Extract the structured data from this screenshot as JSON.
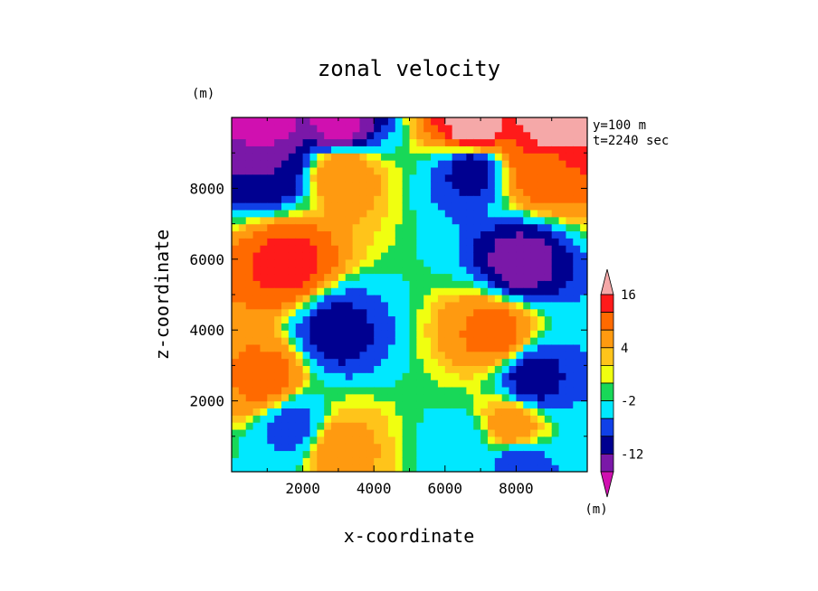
{
  "chart_data": {
    "type": "heatmap",
    "title": "zonal velocity",
    "xlabel": "x-coordinate",
    "ylabel": "z-coordinate",
    "x_unit": "(m)",
    "y_unit": "(m)",
    "xlim": [
      0,
      10000
    ],
    "ylim": [
      0,
      10000
    ],
    "x_ticks": [
      2000,
      4000,
      6000,
      8000
    ],
    "y_ticks": [
      2000,
      4000,
      6000,
      8000
    ],
    "annotations": [
      "y=100 m",
      "t=2240 sec"
    ],
    "colorbar": {
      "unit": "(m)",
      "labels": [
        "16",
        "4",
        "-2",
        "-12"
      ],
      "levels": [
        -18,
        -15,
        -12,
        -9,
        -6,
        -2,
        0,
        2,
        4,
        8,
        12,
        16,
        20
      ],
      "colors": [
        "#d010b0",
        "#7a18a8",
        "#000090",
        "#1040e8",
        "#00e8ff",
        "#18d858",
        "#f0ff10",
        "#ffc41a",
        "#ff9a10",
        "#ff6a00",
        "#ff1a1a",
        "#f5a8a8"
      ]
    },
    "field": [
      {
        "x": 1000,
        "z": 9700,
        "u": -16
      },
      {
        "x": 3000,
        "z": 9700,
        "u": -16
      },
      {
        "x": 6800,
        "z": 9700,
        "u": 18
      },
      {
        "x": 9000,
        "z": 9700,
        "u": 18
      },
      {
        "x": 1150,
        "z": 8650,
        "u": -12
      },
      {
        "x": 3100,
        "z": 8500,
        "u": 7
      },
      {
        "x": 6700,
        "z": 8550,
        "u": -10
      },
      {
        "x": 8750,
        "z": 8650,
        "u": 11
      },
      {
        "x": 1600,
        "z": 5900,
        "u": 13
      },
      {
        "x": 8100,
        "z": 5900,
        "u": -13
      },
      {
        "x": 2900,
        "z": 3950,
        "u": -10
      },
      {
        "x": 7400,
        "z": 3950,
        "u": 9
      },
      {
        "x": 1000,
        "z": 2600,
        "u": 9
      },
      {
        "x": 8450,
        "z": 2600,
        "u": -10
      },
      {
        "x": 1700,
        "z": 1300,
        "u": -7
      },
      {
        "x": 7900,
        "z": 1300,
        "u": 6
      },
      {
        "x": 3000,
        "z": 700,
        "u": 5
      },
      {
        "x": 6500,
        "z": 800,
        "u": -3
      },
      {
        "x": 8100,
        "z": 200,
        "u": -8
      }
    ]
  }
}
